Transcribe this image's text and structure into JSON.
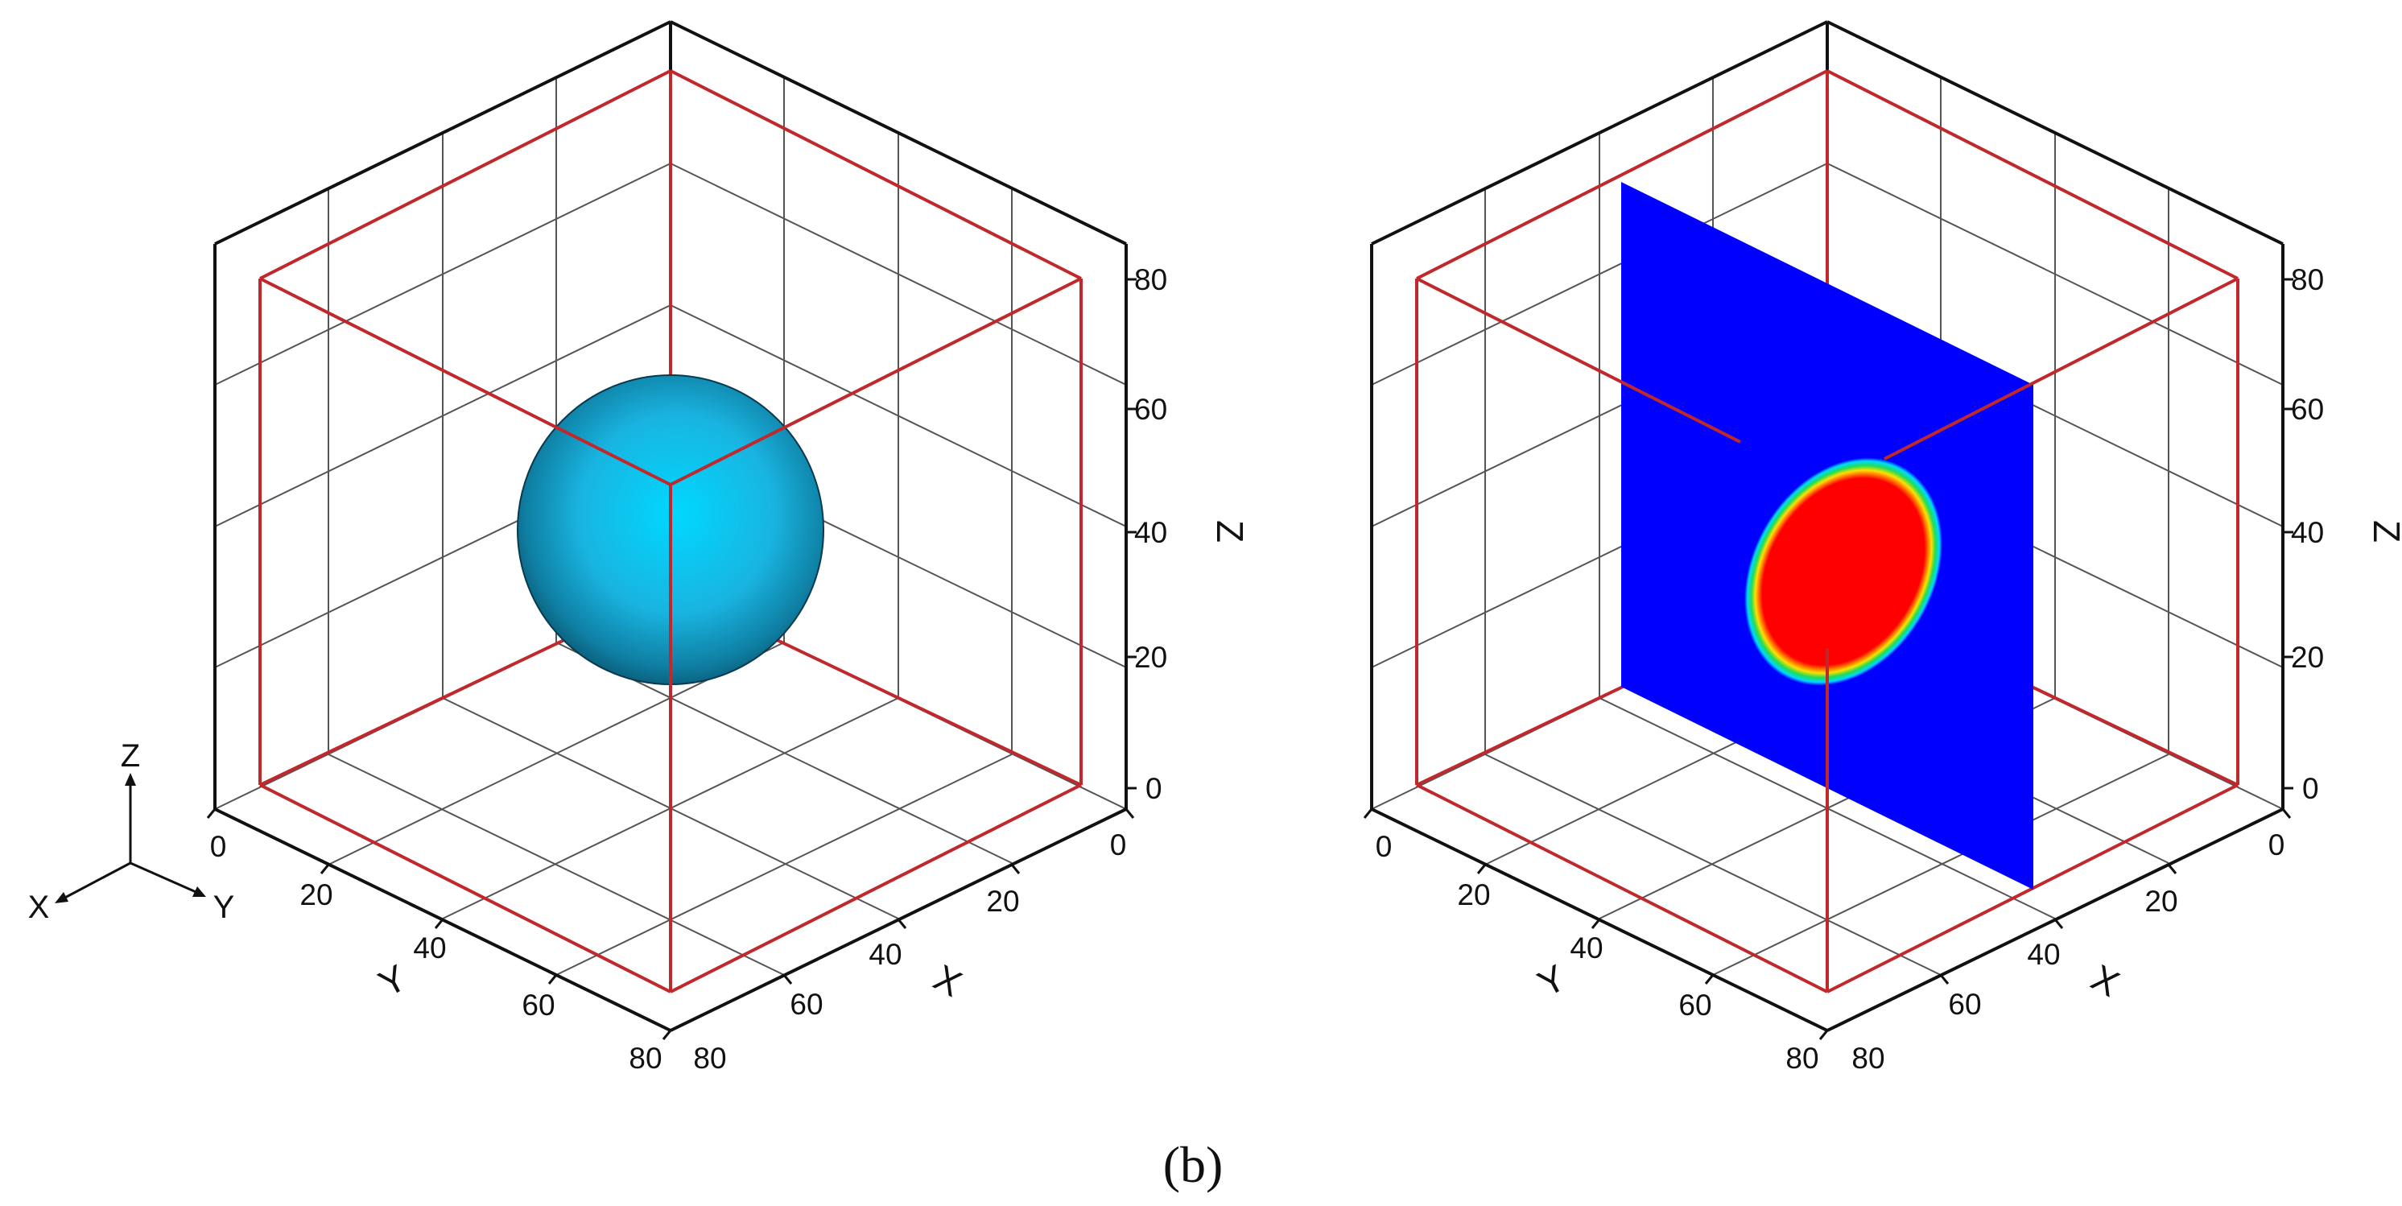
{
  "panel_label": "(b)",
  "axes": {
    "x": {
      "name": "X",
      "ticks": [
        "0",
        "20",
        "40",
        "60",
        "80"
      ]
    },
    "y": {
      "name": "Y",
      "ticks": [
        "0",
        "20",
        "40",
        "60",
        "80"
      ]
    },
    "z": {
      "name": "Z",
      "ticks": [
        "0",
        "20",
        "40",
        "60",
        "80"
      ]
    }
  },
  "triad": {
    "x": "X",
    "y": "Y",
    "z": "Z"
  },
  "panels": [
    {
      "id": "left",
      "content": "sphere isosurface",
      "colors": {
        "sphere": "#1cb8e6",
        "box": "#c0282c"
      }
    },
    {
      "id": "right",
      "content": "cross-section contour",
      "colors": {
        "plane": "#0000ff",
        "outer_ring": "#00d8ff",
        "ring": "#22dd55",
        "yellow": "#ffe000",
        "core": "#ff0000",
        "box": "#c0282c"
      }
    }
  ]
}
